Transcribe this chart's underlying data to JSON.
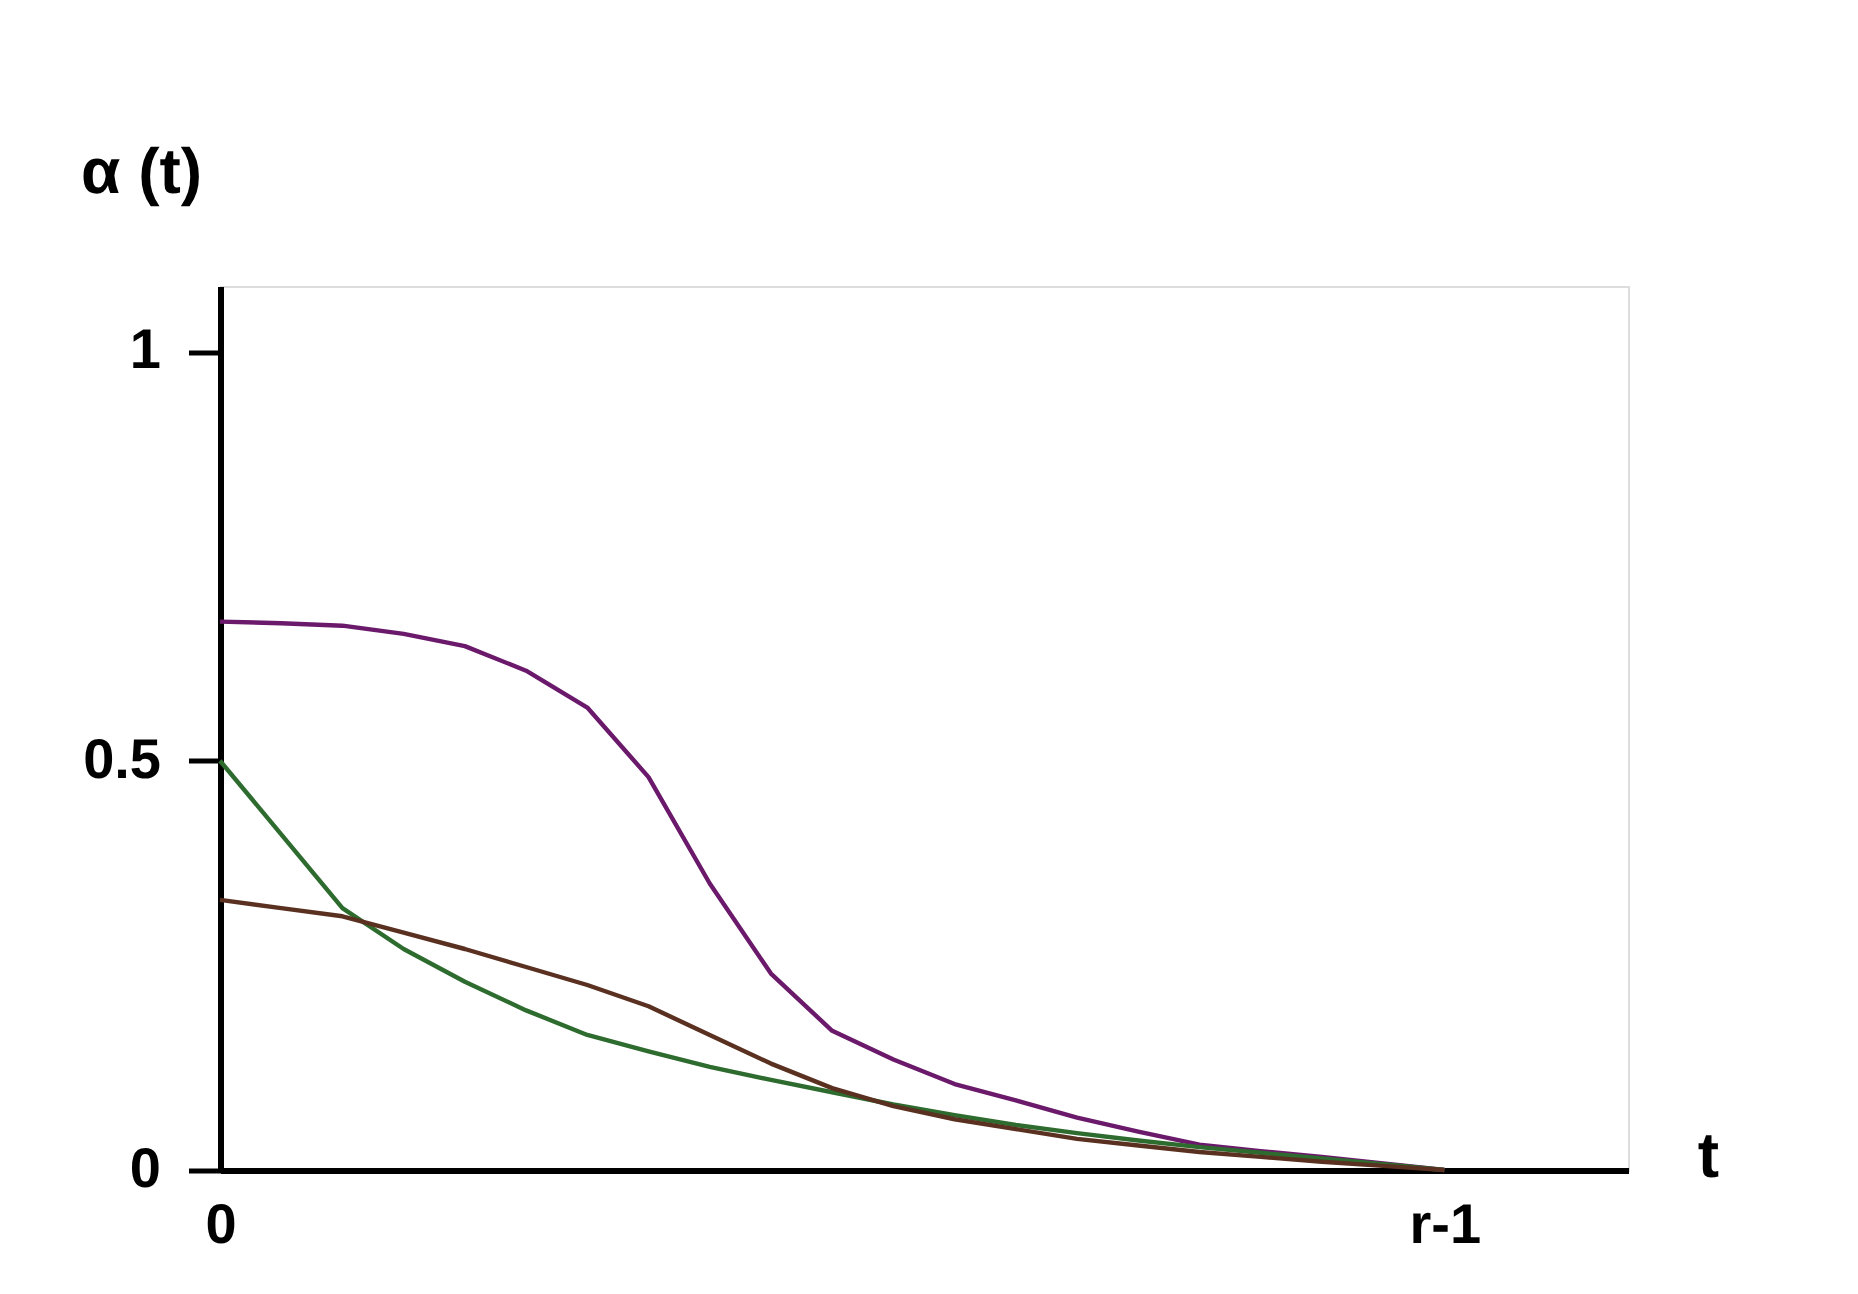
{
  "chart_data": {
    "type": "line",
    "ylabel": "α (t)",
    "xlabel": "t",
    "categories": [
      "0",
      null,
      null,
      null,
      null,
      null,
      null,
      null,
      null,
      null,
      null,
      null,
      null,
      null,
      null,
      null,
      null,
      null,
      null,
      null,
      "r-1",
      null,
      null,
      null
    ],
    "ylim": [
      0,
      1.08
    ],
    "yticks": [
      0,
      0.5,
      1
    ],
    "grid": false,
    "marker": "none",
    "line_style": "solid",
    "series": [
      {
        "color": "#6b1a6b",
        "values": [
          0.67,
          0.668,
          0.665,
          0.655,
          0.64,
          0.61,
          0.565,
          0.48,
          0.35,
          0.24,
          0.17,
          0.135,
          0.105,
          0.085,
          0.064,
          0.047,
          0.031,
          0.023,
          0.016,
          0.008,
          0,
          null,
          null,
          null
        ]
      },
      {
        "color": "#2e6b2e",
        "values": [
          0.5,
          0.41,
          0.32,
          0.27,
          0.23,
          0.195,
          0.165,
          0.145,
          0.126,
          0.11,
          0.095,
          0.08,
          0.067,
          0.055,
          0.045,
          0.036,
          0.028,
          0.021,
          0.014,
          0.007,
          0,
          null,
          null,
          null
        ]
      },
      {
        "color": "#5a3020",
        "values": [
          0.33,
          0.32,
          0.31,
          0.29,
          0.27,
          0.248,
          0.226,
          0.2,
          0.165,
          0.13,
          0.1,
          0.078,
          0.062,
          0.05,
          0.038,
          0.03,
          0.022,
          0.016,
          0.01,
          0.005,
          0,
          null,
          null,
          null
        ]
      }
    ]
  }
}
